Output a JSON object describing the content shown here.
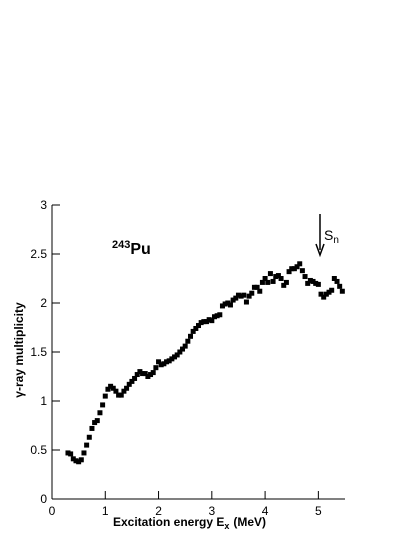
{
  "chart_data": {
    "type": "scatter",
    "x_label": {
      "text": "Excitation energy E",
      "subscript": "x",
      "unit": "(MeV)"
    },
    "y_label": "γ-ray multiplicity",
    "annotations": [
      {
        "superscript": "243",
        "text": "Pu"
      },
      {
        "text": "S",
        "subscript": "n"
      }
    ],
    "color": "#000000",
    "xlim": [
      0,
      5.5
    ],
    "ylim": [
      0,
      3
    ],
    "xticks": [
      0,
      1,
      2,
      3,
      4,
      5
    ],
    "yticks": [
      0,
      0.5,
      1,
      1.5,
      2,
      2.5,
      3
    ],
    "x": [
      0.3,
      0.35,
      0.4,
      0.45,
      0.5,
      0.55,
      0.6,
      0.65,
      0.7,
      0.75,
      0.8,
      0.85,
      0.9,
      0.95,
      1.0,
      1.05,
      1.1,
      1.15,
      1.2,
      1.25,
      1.3,
      1.35,
      1.4,
      1.45,
      1.5,
      1.55,
      1.6,
      1.65,
      1.7,
      1.75,
      1.8,
      1.85,
      1.9,
      1.95,
      2.0,
      2.05,
      2.1,
      2.15,
      2.2,
      2.25,
      2.3,
      2.35,
      2.4,
      2.45,
      2.5,
      2.55,
      2.6,
      2.65,
      2.7,
      2.75,
      2.8,
      2.85,
      2.9,
      2.95,
      3.0,
      3.05,
      3.1,
      3.15,
      3.2,
      3.25,
      3.3,
      3.35,
      3.4,
      3.45,
      3.5,
      3.55,
      3.6,
      3.65,
      3.7,
      3.75,
      3.8,
      3.85,
      3.9,
      3.95,
      4.0,
      4.05,
      4.1,
      4.15,
      4.2,
      4.25,
      4.3,
      4.35,
      4.4,
      4.45,
      4.5,
      4.55,
      4.6,
      4.65,
      4.7,
      4.75,
      4.8,
      4.85,
      4.9,
      4.95,
      5.0,
      5.05,
      5.1,
      5.15,
      5.2,
      5.25,
      5.3,
      5.35,
      5.4,
      5.45
    ],
    "values": [
      0.47,
      0.46,
      0.41,
      0.39,
      0.38,
      0.4,
      0.47,
      0.55,
      0.63,
      0.72,
      0.78,
      0.8,
      0.88,
      0.96,
      1.05,
      1.12,
      1.15,
      1.13,
      1.1,
      1.06,
      1.06,
      1.1,
      1.13,
      1.17,
      1.2,
      1.23,
      1.27,
      1.3,
      1.28,
      1.28,
      1.25,
      1.27,
      1.29,
      1.34,
      1.4,
      1.37,
      1.38,
      1.4,
      1.41,
      1.43,
      1.45,
      1.47,
      1.5,
      1.53,
      1.56,
      1.61,
      1.66,
      1.71,
      1.74,
      1.77,
      1.8,
      1.81,
      1.81,
      1.83,
      1.82,
      1.86,
      1.87,
      1.88,
      1.97,
      1.99,
      2.0,
      1.98,
      2.03,
      2.05,
      2.08,
      2.07,
      2.08,
      2.01,
      2.07,
      2.1,
      2.16,
      2.16,
      2.12,
      2.21,
      2.25,
      2.21,
      2.3,
      2.22,
      2.27,
      2.28,
      2.25,
      2.18,
      2.21,
      2.32,
      2.35,
      2.35,
      2.37,
      2.4,
      2.33,
      2.27,
      2.2,
      2.23,
      2.22,
      2.2,
      2.19,
      2.09,
      2.06,
      2.09,
      2.11,
      2.13,
      2.25,
      2.22,
      2.17,
      2.12
    ]
  }
}
